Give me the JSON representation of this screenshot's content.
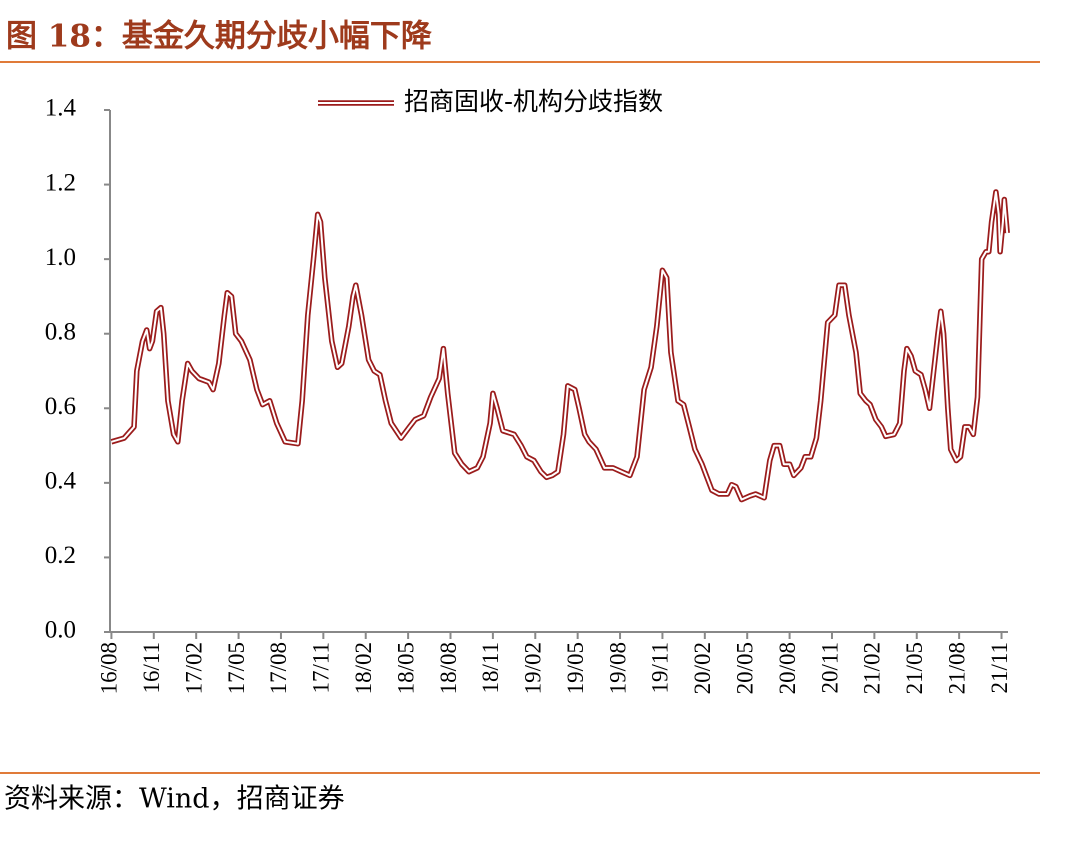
{
  "title": "图 18：基金久期分歧小幅下降",
  "source": "资料来源：Wind，招商证券",
  "chart_data": {
    "type": "line",
    "series": [
      {
        "name": "招商固收-机构分歧指数",
        "color": "#9b1c1c",
        "x": [
          0.0,
          0.9,
          1.6,
          1.8,
          2.2,
          2.5,
          2.7,
          2.9,
          3.2,
          3.5,
          3.7,
          4.0,
          4.4,
          4.7,
          5.0,
          5.4,
          5.7,
          6.2,
          6.9,
          7.2,
          7.6,
          8.0,
          8.2,
          8.5,
          8.8,
          9.2,
          9.8,
          10.3,
          10.7,
          11.2,
          11.7,
          12.3,
          13.2,
          13.5,
          13.9,
          14.3,
          14.6,
          14.8,
          15.1,
          15.6,
          16.0,
          16.3,
          16.8,
          17.1,
          17.3,
          17.7,
          18.2,
          18.6,
          19.0,
          19.4,
          19.8,
          20.5,
          21.1,
          21.5,
          22.1,
          22.6,
          23.2,
          23.5,
          23.8,
          24.3,
          24.8,
          25.3,
          25.9,
          26.3,
          26.8,
          27.0,
          27.3,
          27.7,
          28.5,
          29.0,
          29.4,
          29.9,
          30.4,
          30.8,
          31.2,
          31.6,
          32.0,
          32.3,
          32.8,
          33.1,
          33.5,
          33.8,
          34.3,
          34.9,
          35.5,
          36.1,
          36.7,
          37.2,
          37.7,
          38.2,
          38.6,
          39.0,
          39.3,
          39.6,
          40.1,
          40.5,
          40.9,
          41.3,
          41.8,
          42.1,
          42.5,
          43.0,
          43.6,
          43.9,
          44.2,
          44.6,
          45.2,
          45.6,
          46.2,
          46.6,
          46.9,
          47.3,
          47.6,
          48.0,
          48.3,
          48.8,
          49.1,
          49.5,
          49.9,
          50.2,
          50.7,
          51.2,
          51.5,
          51.9,
          52.2,
          52.7,
          53.0,
          53.4,
          53.7,
          54.1,
          54.5,
          54.8,
          55.4,
          55.8,
          56.1,
          56.3,
          56.6,
          56.9,
          57.3,
          57.6,
          57.9,
          58.2,
          58.5,
          58.7,
          58.9,
          59.2,
          59.4,
          59.8,
          60.1,
          60.4,
          60.7,
          61.0,
          61.3,
          61.6,
          61.9,
          62.1,
          62.3,
          62.6,
          62.8,
          62.9,
          63.1,
          63.2,
          63.4
        ],
        "values": [
          0.51,
          0.52,
          0.55,
          0.7,
          0.78,
          0.81,
          0.76,
          0.78,
          0.86,
          0.87,
          0.8,
          0.62,
          0.53,
          0.51,
          0.62,
          0.72,
          0.7,
          0.68,
          0.67,
          0.65,
          0.72,
          0.85,
          0.91,
          0.9,
          0.8,
          0.78,
          0.73,
          0.65,
          0.61,
          0.62,
          0.56,
          0.51,
          0.505,
          0.62,
          0.85,
          1.0,
          1.12,
          1.1,
          0.95,
          0.78,
          0.71,
          0.72,
          0.82,
          0.9,
          0.93,
          0.85,
          0.73,
          0.7,
          0.69,
          0.62,
          0.56,
          0.52,
          0.55,
          0.57,
          0.58,
          0.63,
          0.68,
          0.76,
          0.64,
          0.48,
          0.45,
          0.43,
          0.44,
          0.47,
          0.56,
          0.64,
          0.6,
          0.54,
          0.53,
          0.5,
          0.47,
          0.46,
          0.43,
          0.415,
          0.42,
          0.43,
          0.53,
          0.66,
          0.65,
          0.6,
          0.53,
          0.51,
          0.49,
          0.44,
          0.44,
          0.43,
          0.42,
          0.47,
          0.65,
          0.71,
          0.82,
          0.97,
          0.95,
          0.75,
          0.62,
          0.61,
          0.55,
          0.49,
          0.45,
          0.42,
          0.38,
          0.37,
          0.37,
          0.395,
          0.39,
          0.355,
          0.365,
          0.37,
          0.36,
          0.46,
          0.5,
          0.5,
          0.45,
          0.45,
          0.42,
          0.44,
          0.47,
          0.47,
          0.52,
          0.62,
          0.83,
          0.85,
          0.93,
          0.93,
          0.85,
          0.75,
          0.64,
          0.62,
          0.61,
          0.57,
          0.55,
          0.525,
          0.53,
          0.56,
          0.7,
          0.76,
          0.74,
          0.7,
          0.69,
          0.65,
          0.6,
          0.7,
          0.8,
          0.86,
          0.8,
          0.6,
          0.49,
          0.46,
          0.47,
          0.55,
          0.55,
          0.53,
          0.63,
          1.0,
          1.02,
          1.02,
          1.1,
          1.18,
          1.12,
          1.02,
          1.1,
          1.16,
          1.07
        ]
      }
    ],
    "xlim": [
      -0.1,
      63.6
    ],
    "xticks": [
      {
        "value": 0,
        "label": "16/08"
      },
      {
        "value": 3,
        "label": "16/11"
      },
      {
        "value": 6,
        "label": "17/02"
      },
      {
        "value": 9,
        "label": "17/05"
      },
      {
        "value": 12,
        "label": "17/08"
      },
      {
        "value": 15,
        "label": "17/11"
      },
      {
        "value": 18,
        "label": "18/02"
      },
      {
        "value": 21,
        "label": "18/05"
      },
      {
        "value": 24,
        "label": "18/08"
      },
      {
        "value": 27,
        "label": "18/11"
      },
      {
        "value": 30,
        "label": "19/02"
      },
      {
        "value": 33,
        "label": "19/05"
      },
      {
        "value": 36,
        "label": "19/08"
      },
      {
        "value": 39,
        "label": "19/11"
      },
      {
        "value": 42,
        "label": "20/02"
      },
      {
        "value": 45,
        "label": "20/05"
      },
      {
        "value": 48,
        "label": "20/08"
      },
      {
        "value": 51,
        "label": "20/11"
      },
      {
        "value": 54,
        "label": "21/02"
      },
      {
        "value": 57,
        "label": "21/05"
      },
      {
        "value": 60,
        "label": "21/08"
      },
      {
        "value": 63,
        "label": "21/11"
      }
    ],
    "ylim": [
      0,
      1.4
    ],
    "yticks": [
      {
        "value": 0,
        "label": "0.0"
      },
      {
        "value": 0.2,
        "label": "0.2"
      },
      {
        "value": 0.4,
        "label": "0.4"
      },
      {
        "value": 0.6,
        "label": "0.6"
      },
      {
        "value": 0.8,
        "label": "0.8"
      },
      {
        "value": 1.0,
        "label": "1.0"
      },
      {
        "value": 1.2,
        "label": "1.2"
      },
      {
        "value": 1.4,
        "label": "1.4"
      }
    ],
    "grid": false,
    "legend": "top"
  }
}
